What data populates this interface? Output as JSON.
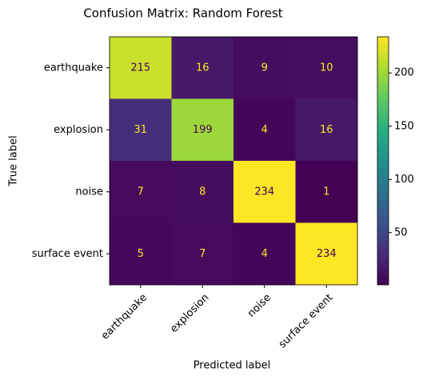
{
  "chart_data": {
    "type": "heatmap",
    "title": "Confusion Matrix: Random Forest",
    "x_label": "Predicted label",
    "y_label": "True label",
    "x_categories": [
      "earthquake",
      "explosion",
      "noise",
      "surface event"
    ],
    "y_categories": [
      "earthquake",
      "explosion",
      "noise",
      "surface event"
    ],
    "values": [
      [
        215,
        16,
        9,
        10
      ],
      [
        31,
        199,
        4,
        16
      ],
      [
        7,
        8,
        234,
        1
      ],
      [
        5,
        7,
        4,
        234
      ]
    ],
    "colormap": "viridis",
    "clim": [
      1,
      234
    ],
    "cticks": [
      50,
      100,
      150,
      200
    ]
  }
}
